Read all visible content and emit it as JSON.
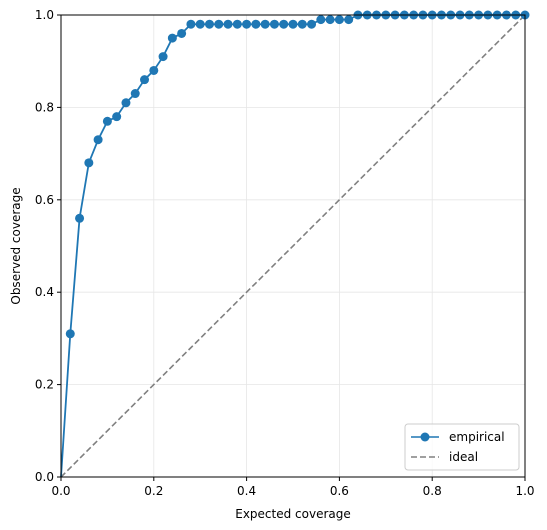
{
  "chart_data": {
    "type": "line",
    "title": "",
    "xlabel": "Expected coverage",
    "ylabel": "Observed coverage",
    "xlim": [
      0,
      1
    ],
    "ylim": [
      0,
      1
    ],
    "grid": true,
    "legend_position": "lower-right",
    "x_ticks": [
      "0.0",
      "0.2",
      "0.4",
      "0.6",
      "0.8",
      "1.0"
    ],
    "y_ticks": [
      "0.0",
      "0.2",
      "0.4",
      "0.6",
      "0.8",
      "1.0"
    ],
    "series": [
      {
        "name": "empirical",
        "style": "solid-line-with-circle-markers",
        "color": "#1f77b4",
        "x": [
          0.0,
          0.02,
          0.04,
          0.06,
          0.08,
          0.1,
          0.12,
          0.14,
          0.16,
          0.18,
          0.2,
          0.22,
          0.24,
          0.26,
          0.28,
          0.3,
          0.32,
          0.34,
          0.36,
          0.38,
          0.4,
          0.42,
          0.44,
          0.46,
          0.48,
          0.5,
          0.52,
          0.54,
          0.56,
          0.58,
          0.6,
          0.62,
          0.64,
          0.66,
          0.68,
          0.7,
          0.72,
          0.74,
          0.76,
          0.78,
          0.8,
          0.82,
          0.84,
          0.86,
          0.88,
          0.9,
          0.92,
          0.94,
          0.96,
          0.98,
          1.0
        ],
        "y": [
          0.0,
          0.31,
          0.56,
          0.68,
          0.73,
          0.77,
          0.78,
          0.81,
          0.83,
          0.86,
          0.88,
          0.91,
          0.95,
          0.96,
          0.98,
          0.98,
          0.98,
          0.98,
          0.98,
          0.98,
          0.98,
          0.98,
          0.98,
          0.98,
          0.98,
          0.98,
          0.98,
          0.98,
          0.99,
          0.99,
          0.99,
          0.99,
          1.0,
          1.0,
          1.0,
          1.0,
          1.0,
          1.0,
          1.0,
          1.0,
          1.0,
          1.0,
          1.0,
          1.0,
          1.0,
          1.0,
          1.0,
          1.0,
          1.0,
          1.0,
          1.0
        ]
      },
      {
        "name": "ideal",
        "style": "dashed-line",
        "color": "#808080",
        "x": [
          0,
          1
        ],
        "y": [
          0,
          1
        ]
      }
    ]
  }
}
